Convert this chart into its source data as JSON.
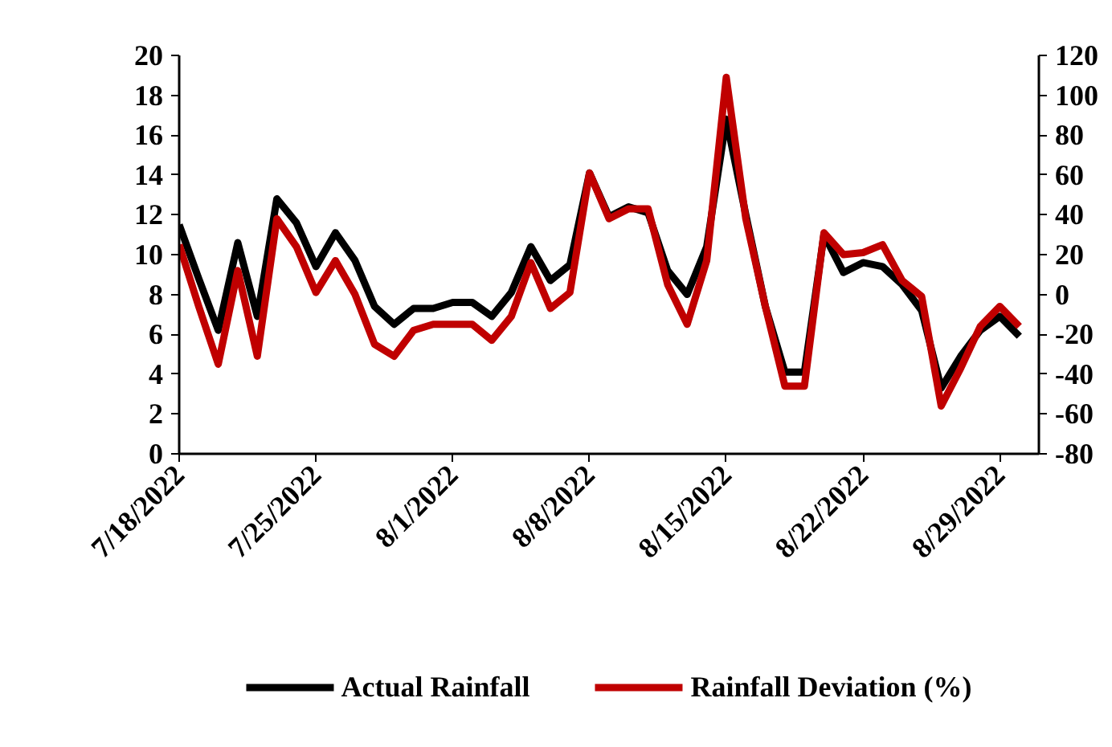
{
  "chart_data": {
    "type": "line",
    "x": [
      "2022-07-18",
      "2022-07-19",
      "2022-07-20",
      "2022-07-21",
      "2022-07-22",
      "2022-07-23",
      "2022-07-24",
      "2022-07-25",
      "2022-07-26",
      "2022-07-27",
      "2022-07-28",
      "2022-07-29",
      "2022-07-30",
      "2022-07-31",
      "2022-08-01",
      "2022-08-02",
      "2022-08-03",
      "2022-08-04",
      "2022-08-05",
      "2022-08-06",
      "2022-08-07",
      "2022-08-08",
      "2022-08-09",
      "2022-08-10",
      "2022-08-11",
      "2022-08-12",
      "2022-08-13",
      "2022-08-14",
      "2022-08-15",
      "2022-08-16",
      "2022-08-17",
      "2022-08-18",
      "2022-08-19",
      "2022-08-20",
      "2022-08-21",
      "2022-08-22",
      "2022-08-23",
      "2022-08-24",
      "2022-08-25",
      "2022-08-26",
      "2022-08-27",
      "2022-08-28",
      "2022-08-29",
      "2022-08-30"
    ],
    "series": [
      {
        "name": "Actual Rainfall",
        "color": "#000000",
        "values": [
          11.5,
          8.8,
          6.2,
          10.6,
          6.9,
          12.8,
          11.6,
          9.4,
          11.1,
          9.7,
          7.4,
          6.5,
          7.3,
          7.3,
          7.6,
          7.6,
          6.9,
          8.1,
          10.4,
          8.7,
          9.5,
          14.1,
          11.9,
          12.4,
          12.1,
          9.2,
          8.0,
          10.4,
          16.8,
          12.0,
          7.4,
          4.1,
          4.1,
          11.0,
          9.1,
          9.6,
          9.4,
          8.5,
          7.2,
          3.3,
          4.9,
          6.2,
          6.9,
          5.9
        ]
      },
      {
        "name": "Rainfall Deviation (%)",
        "color": "#c00000",
        "axis": "y2",
        "values": [
          25,
          -6,
          -35,
          12,
          -31,
          38,
          24,
          1,
          17,
          0,
          -25,
          -31,
          -18,
          -15,
          -15,
          -15,
          -23,
          -11,
          16,
          -7,
          1,
          61,
          38,
          43,
          43,
          5,
          -15,
          17,
          109,
          38,
          -6,
          -46,
          -46,
          31,
          20,
          21,
          25,
          7,
          -1,
          -56,
          -37,
          -16,
          -6,
          -16
        ]
      }
    ],
    "xlim": [
      "2022-07-18",
      "2022-08-31"
    ],
    "xticks": [
      {
        "value": "2022-07-18",
        "label": "7/18/2022"
      },
      {
        "value": "2022-07-25",
        "label": "7/25/2022"
      },
      {
        "value": "2022-08-01",
        "label": "8/1/2022"
      },
      {
        "value": "2022-08-08",
        "label": "8/8/2022"
      },
      {
        "value": "2022-08-15",
        "label": "8/15/2022"
      },
      {
        "value": "2022-08-22",
        "label": "8/22/2022"
      },
      {
        "value": "2022-08-29",
        "label": "8/29/2022"
      }
    ],
    "ylim": [
      0,
      20
    ],
    "yticks": [
      0,
      2,
      4,
      6,
      8,
      10,
      12,
      14,
      16,
      18,
      20
    ],
    "y2lim": [
      -80,
      120
    ],
    "y2ticks": [
      -80,
      -60,
      -40,
      -20,
      0,
      20,
      40,
      60,
      80,
      100,
      120
    ],
    "grid": false,
    "legend": "bottom",
    "marker": "none",
    "line_style": "solid"
  }
}
